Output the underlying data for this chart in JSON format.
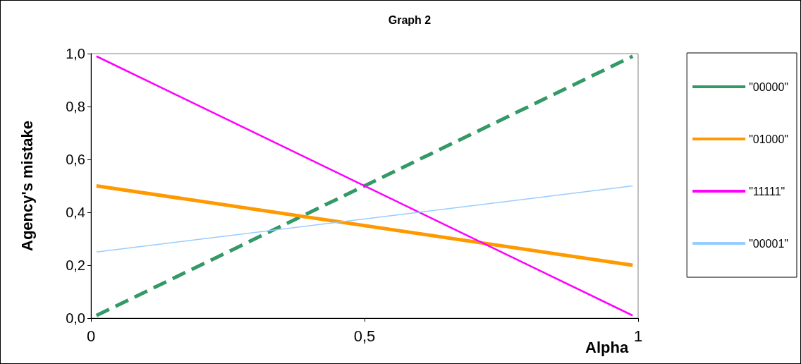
{
  "chart_data": {
    "type": "line",
    "title": "Graph 2",
    "xlabel": "Alpha",
    "ylabel": "Agency's mistake",
    "x": [
      0.01,
      0.99
    ],
    "series": [
      {
        "name": "\"00000\"",
        "color": "#339966",
        "values": [
          0.01,
          0.99
        ],
        "line_style": "dashed"
      },
      {
        "name": "\"01000\"",
        "color": "#ff9900",
        "values": [
          0.5,
          0.2
        ]
      },
      {
        "name": "\"11111\"",
        "color": "#ff00ff",
        "values": [
          0.99,
          0.01
        ]
      },
      {
        "name": "\"00001\"",
        "color": "#99ccff",
        "values": [
          0.25,
          0.5
        ]
      }
    ],
    "xlim": [
      0,
      1
    ],
    "xticks": [
      0,
      {
        "value": 0.5,
        "label": "0,5"
      },
      1
    ],
    "ylim": [
      0,
      1
    ],
    "yticks": [
      {
        "value": 0,
        "label": "0,0"
      },
      {
        "value": 0.2,
        "label": "0,2"
      },
      {
        "value": 0.4,
        "label": "0,4"
      },
      {
        "value": 0.6,
        "label": "0,6"
      },
      {
        "value": 0.8,
        "label": "0,8"
      },
      {
        "value": 1,
        "label": "1,0"
      }
    ],
    "grid": false,
    "legend": "right",
    "marker": "none",
    "line_style": "solid"
  }
}
